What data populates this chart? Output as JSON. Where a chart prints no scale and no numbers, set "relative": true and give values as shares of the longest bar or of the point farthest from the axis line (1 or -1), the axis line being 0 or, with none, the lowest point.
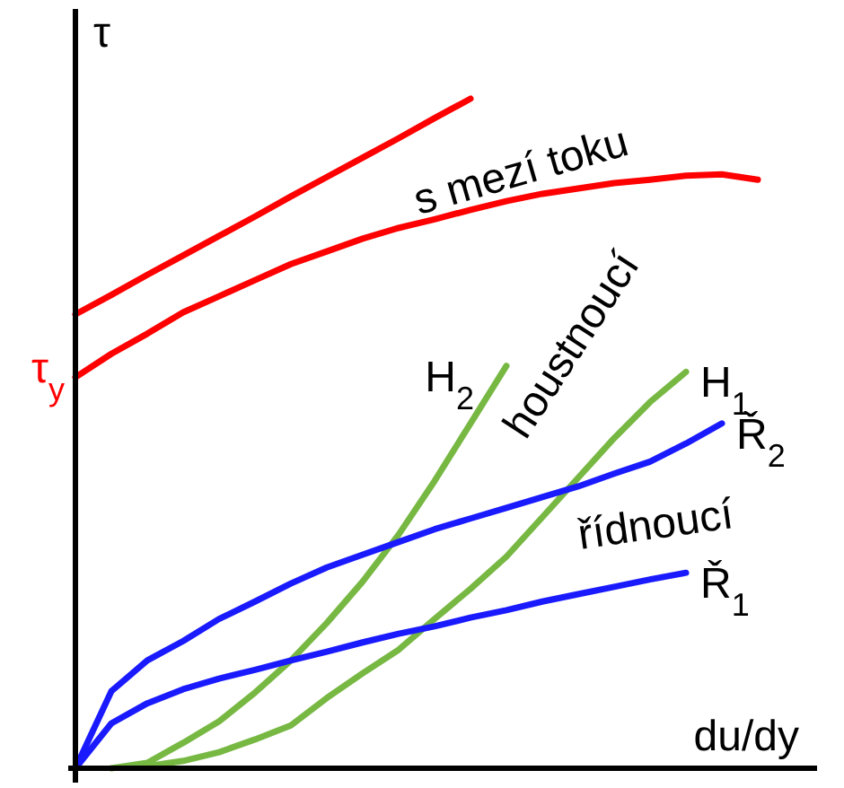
{
  "chart_data": {
    "type": "line",
    "relative": true,
    "xlabel": "du/dy",
    "ylabel": "τ",
    "legend": false,
    "marker": "none",
    "line_style": "solid",
    "categories": [
      null,
      null,
      null,
      null,
      null,
      null,
      null,
      null,
      null,
      null,
      null,
      null,
      null,
      null,
      null,
      null,
      null,
      null,
      null,
      null,
      null
    ],
    "annotations": [
      "τ$_{y}$",
      "s mezí toku",
      "houstnoucí",
      "řídnoucí"
    ],
    "series": [
      {
        "color": "#ff0000",
        "values": [
          0.678,
          0.707,
          0.737,
          0.766,
          0.795,
          0.824,
          0.854,
          0.883,
          0.912,
          0.941,
          0.971,
          1.0,
          null,
          null,
          null,
          null,
          null,
          null,
          null,
          null,
          null
        ]
      },
      {
        "color": "#ff0000",
        "values": [
          0.584,
          0.619,
          0.649,
          0.681,
          0.705,
          0.729,
          0.753,
          0.772,
          0.791,
          0.807,
          0.82,
          0.834,
          0.847,
          0.858,
          0.866,
          0.874,
          0.879,
          0.885,
          0.887,
          0.879,
          null
        ]
      },
      {
        "name": "H$_{2}$",
        "color": "#77b843",
        "values": [
          null,
          0,
          0.008,
          0.038,
          0.07,
          0.113,
          0.161,
          0.217,
          0.279,
          0.349,
          0.429,
          0.515,
          0.601,
          null,
          null,
          null,
          null,
          null,
          null,
          null,
          null
        ]
      },
      {
        "name": "H$_{1}$",
        "color": "#77b843",
        "values": [
          null,
          null,
          0.003,
          0.011,
          0.024,
          0.043,
          0.064,
          0.105,
          0.142,
          0.177,
          0.223,
          0.268,
          0.316,
          0.375,
          0.434,
          0.493,
          0.547,
          0.592,
          null,
          null,
          null
        ]
      },
      {
        "name": "Ř$_{2}$",
        "color": "#1a1aff",
        "values": [
          0,
          0.115,
          0.161,
          0.19,
          0.223,
          0.249,
          0.276,
          0.3,
          0.319,
          0.338,
          0.357,
          0.373,
          0.389,
          0.405,
          0.421,
          0.44,
          0.458,
          0.485,
          0.515,
          null,
          null
        ]
      },
      {
        "name": "Ř$_{1}$",
        "color": "#1a1aff",
        "values": [
          0,
          0.067,
          0.097,
          0.118,
          0.134,
          0.147,
          0.161,
          0.174,
          0.188,
          0.201,
          0.212,
          0.225,
          0.236,
          0.249,
          0.26,
          0.271,
          0.282,
          0.292,
          null,
          null,
          null
        ]
      }
    ]
  }
}
